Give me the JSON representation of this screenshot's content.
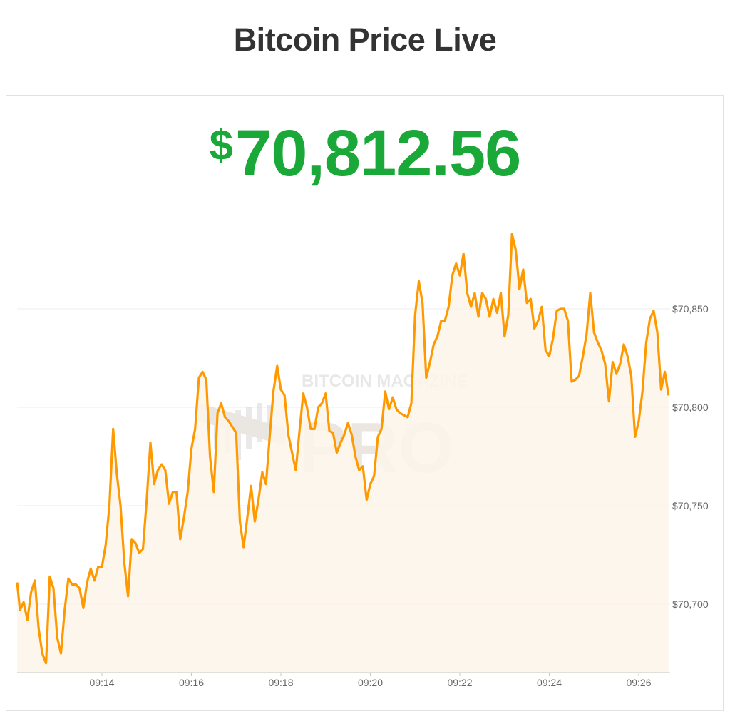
{
  "header": {
    "title": "Bitcoin Price Live"
  },
  "price": {
    "currency_symbol": "$",
    "value": "70,812.56",
    "color": "#1aa838"
  },
  "watermark": {
    "line1": "BITCOIN MAGAZINE",
    "line2": "PRO"
  },
  "colors": {
    "line": "#ff9900",
    "fill": "#fdf5ea",
    "grid": "#ececec"
  },
  "chart_data": {
    "type": "area",
    "title": "",
    "xlabel": "",
    "ylabel": "",
    "grid": true,
    "ylim": [
      70665,
      70898
    ],
    "xlim": [
      "09:12:05",
      "09:26:45"
    ],
    "x_ticks": [
      "09:14",
      "09:16",
      "09:18",
      "09:20",
      "09:22",
      "09:24",
      "09:26"
    ],
    "y_ticks": [
      {
        "value": 70700,
        "label": "$70,700"
      },
      {
        "value": 70750,
        "label": "$70,750"
      },
      {
        "value": 70800,
        "label": "$70,800"
      },
      {
        "value": 70850,
        "label": "$70,850"
      }
    ],
    "x": [
      "09:12:05",
      "09:12:10",
      "09:12:15",
      "09:12:20",
      "09:12:25",
      "09:12:30",
      "09:12:35",
      "09:12:40",
      "09:12:45",
      "09:12:50",
      "09:12:55",
      "09:13:00",
      "09:13:05",
      "09:13:10",
      "09:13:15",
      "09:13:20",
      "09:13:25",
      "09:13:30",
      "09:13:35",
      "09:13:40",
      "09:13:45",
      "09:13:50",
      "09:13:55",
      "09:14:00",
      "09:14:05",
      "09:14:10",
      "09:14:15",
      "09:14:20",
      "09:14:25",
      "09:14:30",
      "09:14:35",
      "09:14:40",
      "09:14:45",
      "09:14:50",
      "09:14:55",
      "09:15:00",
      "09:15:05",
      "09:15:10",
      "09:15:15",
      "09:15:20",
      "09:15:25",
      "09:15:30",
      "09:15:35",
      "09:15:40",
      "09:15:45",
      "09:15:50",
      "09:15:55",
      "09:16:00",
      "09:16:05",
      "09:16:10",
      "09:16:15",
      "09:16:20",
      "09:16:25",
      "09:16:30",
      "09:16:35",
      "09:16:40",
      "09:16:45",
      "09:16:50",
      "09:16:55",
      "09:17:00",
      "09:17:05",
      "09:17:10",
      "09:17:15",
      "09:17:20",
      "09:17:25",
      "09:17:30",
      "09:17:35",
      "09:17:40",
      "09:17:45",
      "09:17:50",
      "09:17:55",
      "09:18:00",
      "09:18:05",
      "09:18:10",
      "09:18:15",
      "09:18:20",
      "09:18:25",
      "09:18:30",
      "09:18:35",
      "09:18:40",
      "09:18:45",
      "09:18:50",
      "09:18:55",
      "09:19:00",
      "09:19:05",
      "09:19:10",
      "09:19:15",
      "09:19:20",
      "09:19:25",
      "09:19:30",
      "09:19:35",
      "09:19:40",
      "09:19:45",
      "09:19:50",
      "09:19:55",
      "09:20:00",
      "09:20:05",
      "09:20:10",
      "09:20:15",
      "09:20:20",
      "09:20:25",
      "09:20:30",
      "09:20:35",
      "09:20:40",
      "09:20:45",
      "09:20:50",
      "09:20:55",
      "09:21:00",
      "09:21:05",
      "09:21:10",
      "09:21:15",
      "09:21:20",
      "09:21:25",
      "09:21:30",
      "09:21:35",
      "09:21:40",
      "09:21:45",
      "09:21:50",
      "09:21:55",
      "09:22:00",
      "09:22:05",
      "09:22:10",
      "09:22:15",
      "09:22:20",
      "09:22:25",
      "09:22:30",
      "09:22:35",
      "09:22:40",
      "09:22:45",
      "09:22:50",
      "09:22:55",
      "09:23:00",
      "09:23:05",
      "09:23:10",
      "09:23:15",
      "09:23:20",
      "09:23:25",
      "09:23:30",
      "09:23:35",
      "09:23:40",
      "09:23:45",
      "09:23:50",
      "09:23:55",
      "09:24:00",
      "09:24:05",
      "09:24:10",
      "09:24:15",
      "09:24:20",
      "09:24:25",
      "09:24:30",
      "09:24:35",
      "09:24:40",
      "09:24:45",
      "09:24:50",
      "09:24:55",
      "09:25:00",
      "09:25:05",
      "09:25:10",
      "09:25:15",
      "09:25:20",
      "09:25:25",
      "09:25:30",
      "09:25:35",
      "09:25:40",
      "09:25:45",
      "09:25:50",
      "09:25:55",
      "09:26:00",
      "09:26:05",
      "09:26:10",
      "09:26:15",
      "09:26:20",
      "09:26:25",
      "09:26:30",
      "09:26:35",
      "09:26:40"
    ],
    "values": [
      70711,
      70697,
      70701,
      70692,
      70706,
      70712,
      70688,
      70675,
      70670,
      70714,
      70708,
      70683,
      70675,
      70697,
      70713,
      70710,
      70710,
      70708,
      70698,
      70711,
      70718,
      70712,
      70719,
      70719,
      70730,
      70750,
      70789,
      70766,
      70750,
      70721,
      70704,
      70733,
      70731,
      70726,
      70728,
      70753,
      70782,
      70761,
      70768,
      70771,
      70768,
      70751,
      70757,
      70757,
      70733,
      70744,
      70757,
      70779,
      70789,
      70815,
      70818,
      70814,
      70775,
      70757,
      70797,
      70802,
      70795,
      70793,
      70790,
      70787,
      70742,
      70729,
      70744,
      70760,
      70742,
      70753,
      70767,
      70761,
      70785,
      70808,
      70821,
      70809,
      70806,
      70786,
      70777,
      70768,
      70788,
      70807,
      70800,
      70789,
      70789,
      70800,
      70802,
      70807,
      70788,
      70787,
      70777,
      70782,
      70786,
      70792,
      70786,
      70775,
      70768,
      70770,
      70753,
      70761,
      70765,
      70785,
      70789,
      70808,
      70799,
      70805,
      70799,
      70797,
      70796,
      70795,
      70802,
      70847,
      70864,
      70853,
      70815,
      70823,
      70832,
      70836,
      70844,
      70844,
      70851,
      70867,
      70873,
      70867,
      70878,
      70858,
      70851,
      70858,
      70846,
      70858,
      70855,
      70846,
      70855,
      70848,
      70858,
      70836,
      70847,
      70888,
      70880,
      70860,
      70870,
      70853,
      70855,
      70840,
      70844,
      70851,
      70829,
      70826,
      70835,
      70849,
      70850,
      70850,
      70844,
      70813,
      70814,
      70816,
      70826,
      70837,
      70858,
      70838,
      70833,
      70829,
      70822,
      70803,
      70823,
      70817,
      70822,
      70832,
      70826,
      70816,
      70785,
      70793,
      70808,
      70833,
      70845,
      70849,
      70838,
      70809,
      70818,
      70806
    ]
  }
}
